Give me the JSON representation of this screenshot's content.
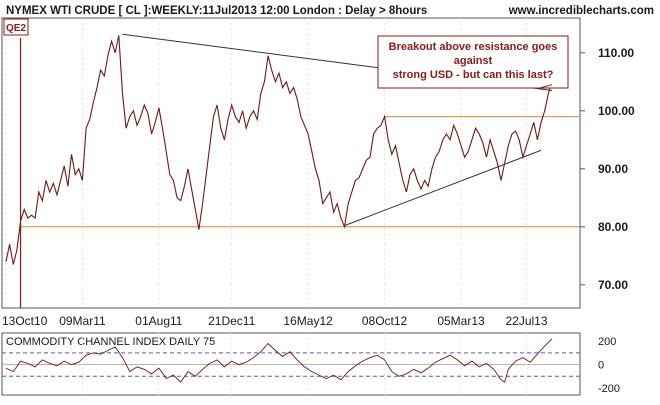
{
  "header": {
    "title": "NYMEX WTI CRUDE [ CL ]:WEEKLY:11Jul2013 12:00 London : Delay > 8hours",
    "site": "www.incrediblecharts.com"
  },
  "colors": {
    "price_line": "#6b1a1a",
    "support_resistance": "#d98a2b",
    "trend_line": "#333333",
    "annotation_box": "#8b1a1a",
    "qe_line": "#8b1a1a",
    "cci_band": "#5555cc",
    "header_text": "#1a1a1a"
  },
  "chart_data": [
    {
      "type": "line",
      "name": "price",
      "y_ticks": [
        "110.00",
        "100.00",
        "90.00",
        "80.00",
        "70.00"
      ],
      "x_ticks": [
        "13Oct10",
        "09Mar11",
        "01Aug11",
        "21Dec11",
        "16May12",
        "08Oct12",
        "05Mar13",
        "22Jul13"
      ],
      "ylim": [
        66,
        116
      ],
      "week_range": [
        0,
        150
      ],
      "week_series": [
        [
          0,
          74
        ],
        [
          1,
          77
        ],
        [
          2,
          73.5
        ],
        [
          3,
          76
        ],
        [
          4,
          81
        ],
        [
          5,
          83
        ],
        [
          6,
          81.5
        ],
        [
          7,
          82
        ],
        [
          8,
          81.5
        ],
        [
          9,
          86
        ],
        [
          10,
          84.5
        ],
        [
          11,
          88
        ],
        [
          12,
          86
        ],
        [
          13,
          87.5
        ],
        [
          14,
          85.5
        ],
        [
          15,
          88
        ],
        [
          16,
          90.5
        ],
        [
          17,
          87
        ],
        [
          18,
          92.5
        ],
        [
          19,
          89
        ],
        [
          20,
          90
        ],
        [
          21,
          88
        ],
        [
          22,
          97
        ],
        [
          23,
          98.5
        ],
        [
          24,
          101.5
        ],
        [
          25,
          104
        ],
        [
          26,
          107
        ],
        [
          27,
          106
        ],
        [
          28,
          109.5
        ],
        [
          29,
          112
        ],
        [
          30,
          110
        ],
        [
          31,
          113
        ],
        [
          32,
          103
        ],
        [
          33,
          97
        ],
        [
          34,
          99
        ],
        [
          35,
          100
        ],
        [
          36,
          97.5
        ],
        [
          37,
          99
        ],
        [
          38,
          101
        ],
        [
          39,
          99.5
        ],
        [
          40,
          96
        ],
        [
          41,
          98
        ],
        [
          42,
          100.5
        ],
        [
          43,
          97
        ],
        [
          44,
          93
        ],
        [
          45,
          89
        ],
        [
          46,
          88
        ],
        [
          47,
          85
        ],
        [
          48,
          84.5
        ],
        [
          49,
          87
        ],
        [
          50,
          90
        ],
        [
          51,
          86.5
        ],
        [
          52,
          83
        ],
        [
          53,
          79.5
        ],
        [
          54,
          84
        ],
        [
          55,
          89
        ],
        [
          56,
          94
        ],
        [
          57,
          99
        ],
        [
          58,
          101
        ],
        [
          59,
          97
        ],
        [
          60,
          95
        ],
        [
          61,
          98.5
        ],
        [
          62,
          101
        ],
        [
          63,
          99
        ],
        [
          64,
          98
        ],
        [
          65,
          100
        ],
        [
          66,
          97
        ],
        [
          67,
          99
        ],
        [
          68,
          100
        ],
        [
          69,
          98.5
        ],
        [
          70,
          103
        ],
        [
          71,
          105
        ],
        [
          72,
          109.5
        ],
        [
          73,
          107
        ],
        [
          74,
          105
        ],
        [
          75,
          106.5
        ],
        [
          76,
          104
        ],
        [
          77,
          105
        ],
        [
          78,
          103
        ],
        [
          79,
          104
        ],
        [
          80,
          102
        ],
        [
          81,
          99
        ],
        [
          82,
          97.5
        ],
        [
          83,
          96
        ],
        [
          84,
          93
        ],
        [
          85,
          90
        ],
        [
          86,
          88
        ],
        [
          87,
          84
        ],
        [
          88,
          85
        ],
        [
          89,
          86
        ],
        [
          90,
          82.5
        ],
        [
          91,
          84
        ],
        [
          92,
          81.5
        ],
        [
          93,
          80
        ],
        [
          94,
          84
        ],
        [
          95,
          86
        ],
        [
          96,
          88
        ],
        [
          97,
          88.5
        ],
        [
          98,
          90
        ],
        [
          99,
          91.5
        ],
        [
          100,
          92
        ],
        [
          101,
          96
        ],
        [
          102,
          97
        ],
        [
          103,
          97.5
        ],
        [
          104,
          99
        ],
        [
          105,
          95
        ],
        [
          106,
          92.5
        ],
        [
          107,
          94
        ],
        [
          108,
          91
        ],
        [
          109,
          88
        ],
        [
          110,
          86
        ],
        [
          111,
          89
        ],
        [
          112,
          90
        ],
        [
          113,
          88
        ],
        [
          114,
          86.5
        ],
        [
          115,
          88
        ],
        [
          116,
          87
        ],
        [
          117,
          90
        ],
        [
          118,
          92
        ],
        [
          119,
          93
        ],
        [
          120,
          95
        ],
        [
          121,
          96
        ],
        [
          122,
          95
        ],
        [
          123,
          97.5
        ],
        [
          124,
          96
        ],
        [
          125,
          94
        ],
        [
          126,
          92
        ],
        [
          127,
          93
        ],
        [
          128,
          95
        ],
        [
          129,
          97
        ],
        [
          130,
          96
        ],
        [
          131,
          94.5
        ],
        [
          132,
          92
        ],
        [
          133,
          95
        ],
        [
          134,
          93
        ],
        [
          135,
          91
        ],
        [
          136,
          88
        ],
        [
          137,
          91
        ],
        [
          138,
          94
        ],
        [
          139,
          96
        ],
        [
          140,
          96.5
        ],
        [
          141,
          95
        ],
        [
          142,
          92
        ],
        [
          143,
          94
        ],
        [
          144,
          96
        ],
        [
          145,
          98
        ],
        [
          146,
          95
        ],
        [
          147,
          98
        ],
        [
          148,
          100
        ],
        [
          149,
          103
        ],
        [
          150,
          105
        ]
      ],
      "support_lines": [
        {
          "y": 80,
          "x_start": 4,
          "x_end": 150
        },
        {
          "y": 99,
          "x_start": 104,
          "x_end": 150
        }
      ],
      "trend_lines": [
        {
          "from": [
            32,
            113.2
          ],
          "to": [
            150,
            103.5
          ]
        },
        {
          "from": [
            93,
            80.2
          ],
          "to": [
            147,
            93.2
          ]
        }
      ],
      "markers": [
        {
          "label": "QE2",
          "x": 4
        }
      ],
      "annotation": {
        "lines": [
          "Breakout above resistance goes",
          "against",
          "strong USD - but can this last?"
        ],
        "arrow_to": [
          150,
          104.5
        ]
      }
    },
    {
      "type": "line",
      "name": "cci",
      "title": "COMMODITY CHANNEL INDEX DAILY 75",
      "y_ticks": [
        "200",
        "0",
        "-200"
      ],
      "ylim": [
        -260,
        270
      ],
      "bands": [
        100,
        -100
      ],
      "week_series": [
        [
          0,
          -30
        ],
        [
          2,
          -60
        ],
        [
          4,
          30
        ],
        [
          6,
          10
        ],
        [
          8,
          -20
        ],
        [
          10,
          40
        ],
        [
          12,
          10
        ],
        [
          14,
          -10
        ],
        [
          16,
          30
        ],
        [
          18,
          0
        ],
        [
          20,
          20
        ],
        [
          22,
          80
        ],
        [
          24,
          100
        ],
        [
          26,
          90
        ],
        [
          28,
          120
        ],
        [
          30,
          150
        ],
        [
          32,
          60
        ],
        [
          34,
          -60
        ],
        [
          36,
          -20
        ],
        [
          38,
          -40
        ],
        [
          40,
          -80
        ],
        [
          42,
          -30
        ],
        [
          44,
          -120
        ],
        [
          46,
          -90
        ],
        [
          48,
          -150
        ],
        [
          50,
          -60
        ],
        [
          52,
          -100
        ],
        [
          54,
          -40
        ],
        [
          56,
          10
        ],
        [
          58,
          40
        ],
        [
          60,
          -20
        ],
        [
          62,
          30
        ],
        [
          64,
          0
        ],
        [
          66,
          20
        ],
        [
          68,
          60
        ],
        [
          70,
          110
        ],
        [
          72,
          180
        ],
        [
          74,
          120
        ],
        [
          76,
          70
        ],
        [
          78,
          110
        ],
        [
          80,
          40
        ],
        [
          82,
          -20
        ],
        [
          84,
          -60
        ],
        [
          86,
          -90
        ],
        [
          88,
          -120
        ],
        [
          90,
          -90
        ],
        [
          92,
          -130
        ],
        [
          94,
          -60
        ],
        [
          96,
          -10
        ],
        [
          98,
          30
        ],
        [
          100,
          60
        ],
        [
          102,
          80
        ],
        [
          104,
          40
        ],
        [
          106,
          -60
        ],
        [
          108,
          -100
        ],
        [
          110,
          -80
        ],
        [
          112,
          -40
        ],
        [
          114,
          -70
        ],
        [
          116,
          -30
        ],
        [
          118,
          20
        ],
        [
          120,
          50
        ],
        [
          122,
          80
        ],
        [
          124,
          40
        ],
        [
          126,
          -10
        ],
        [
          128,
          30
        ],
        [
          130,
          -20
        ],
        [
          132,
          10
        ],
        [
          134,
          -40
        ],
        [
          136,
          -130
        ],
        [
          137,
          -150
        ],
        [
          138,
          -40
        ],
        [
          140,
          30
        ],
        [
          142,
          60
        ],
        [
          144,
          20
        ],
        [
          146,
          90
        ],
        [
          148,
          160
        ],
        [
          150,
          220
        ]
      ]
    }
  ]
}
